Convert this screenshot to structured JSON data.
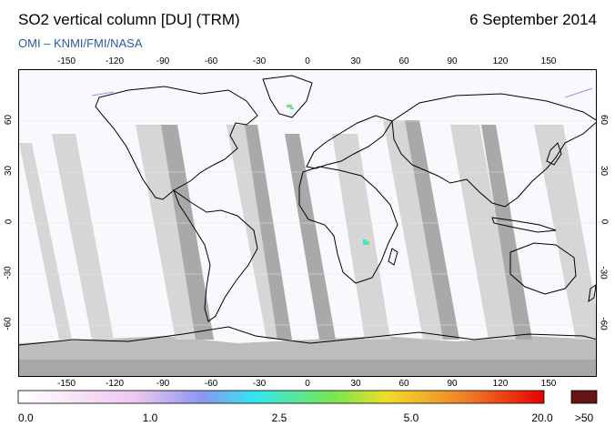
{
  "header": {
    "title": "SO2 vertical column [DU] (TRM)",
    "date": "6 September 2014",
    "credit": "OMI  –  KNMI/FMI/NASA"
  },
  "map": {
    "lon_ticks": [
      "-150",
      "-120",
      "-90",
      "-60",
      "-30",
      "0",
      "30",
      "60",
      "90",
      "120",
      "150"
    ],
    "lat_ticks": [
      "60",
      "30",
      "0",
      "-30",
      "-60"
    ]
  },
  "colorbar": {
    "labels": [
      "0.0",
      "1.0",
      "2.5",
      "5.0",
      "20.0",
      ">50"
    ],
    "colors": [
      "#ffffff",
      "#f0c8f0",
      "#8c96f0",
      "#32e6f0",
      "#78e650",
      "#f0dc28",
      "#f08228",
      "#e60000",
      "#641414"
    ]
  }
}
